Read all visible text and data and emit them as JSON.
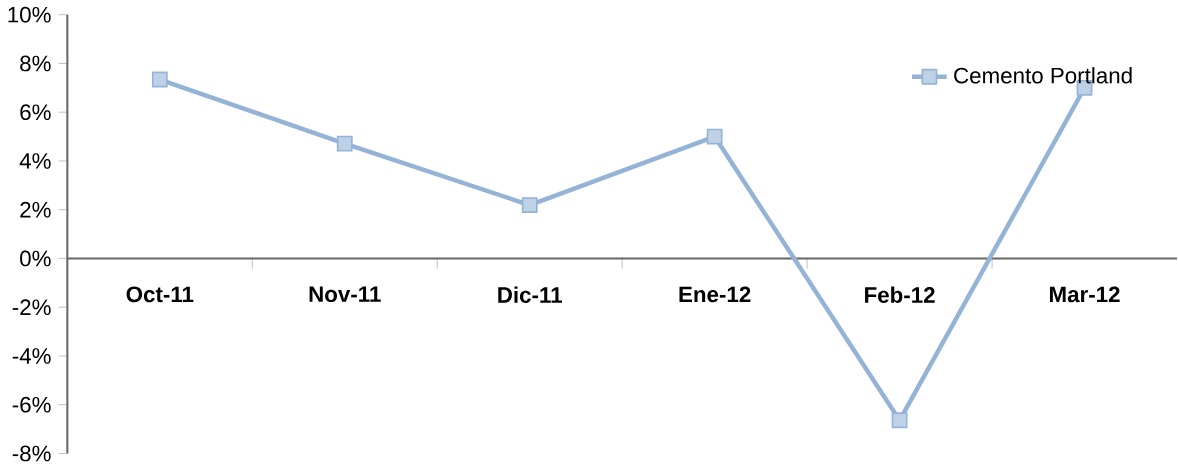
{
  "chart_data": {
    "type": "line",
    "categories": [
      "Oct-11",
      "Nov-11",
      "Dic-11",
      "Ene-12",
      "Feb-12",
      "Mar-12"
    ],
    "series": [
      {
        "name": "Cemento Portland",
        "color": "#95b3d7",
        "values": [
          7.34,
          4.71,
          2.19,
          5.0,
          -6.64,
          7.0
        ]
      }
    ],
    "ylim": [
      -8,
      10
    ],
    "yticks": [
      {
        "value": -8,
        "label": "-8%"
      },
      {
        "value": -6,
        "label": "-6%"
      },
      {
        "value": -4,
        "label": "-4%"
      },
      {
        "value": -2,
        "label": "-2%"
      },
      {
        "value": 0,
        "label": "0%"
      },
      {
        "value": 2,
        "label": "2%"
      },
      {
        "value": 4,
        "label": "4%"
      },
      {
        "value": 6,
        "label": "6%"
      },
      {
        "value": 8,
        "label": "8%"
      },
      {
        "value": 10,
        "label": "10%"
      }
    ],
    "grid": false,
    "legend": "top right",
    "marker": "square",
    "line_style": "solid"
  }
}
